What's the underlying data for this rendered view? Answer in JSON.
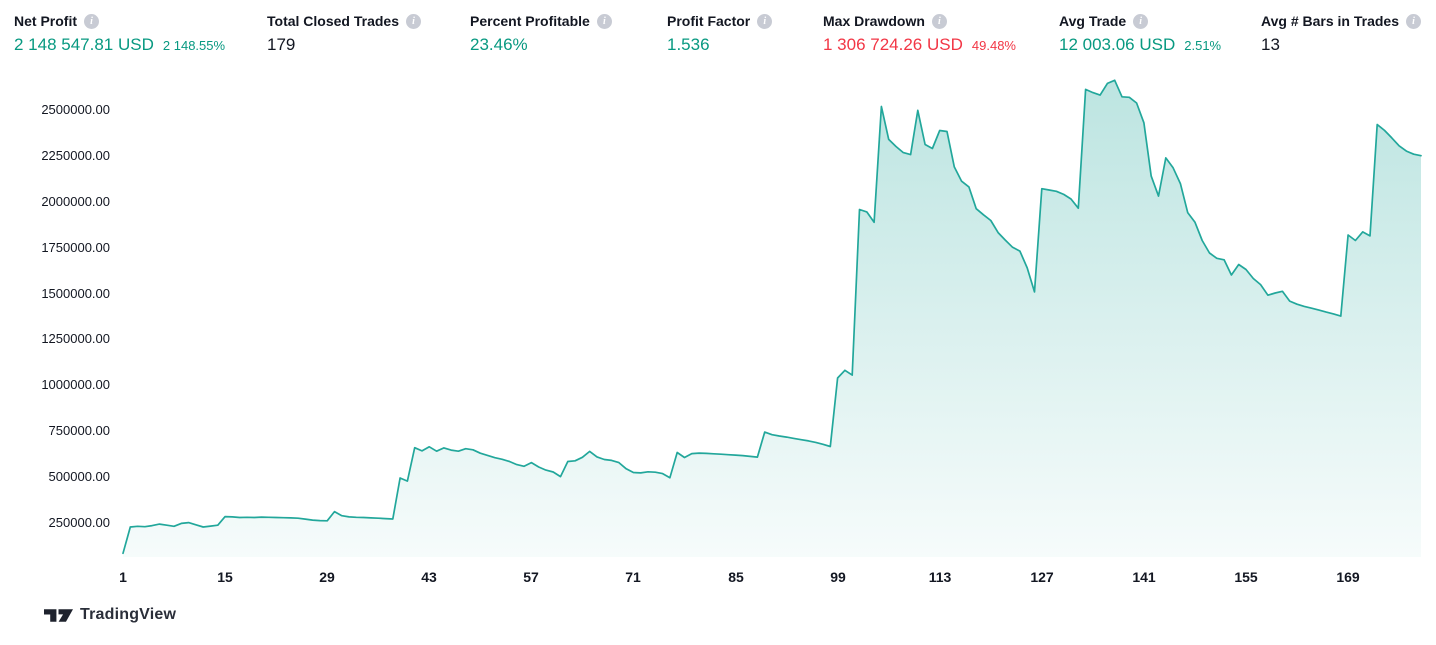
{
  "icons": {
    "info_glyph": "i"
  },
  "stats": [
    {
      "label": "Net Profit",
      "value": "2 148 547.81 USD",
      "sub": "2 148.55%",
      "tone": "positive"
    },
    {
      "label": "Total Closed Trades",
      "value": "179",
      "sub": "",
      "tone": "neutral"
    },
    {
      "label": "Percent Profitable",
      "value": "23.46%",
      "sub": "",
      "tone": "positive"
    },
    {
      "label": "Profit Factor",
      "value": "1.536",
      "sub": "",
      "tone": "positive"
    },
    {
      "label": "Max Drawdown",
      "value": "1 306 724.26 USD",
      "sub": "49.48%",
      "tone": "negative"
    },
    {
      "label": "Avg Trade",
      "value": "12 003.06 USD",
      "sub": "2.51%",
      "tone": "positive"
    },
    {
      "label": "Avg # Bars in Trades",
      "value": "13",
      "sub": "",
      "tone": "neutral"
    }
  ],
  "chart_data": {
    "type": "area",
    "title": "",
    "xlabel": "",
    "ylabel": "",
    "x_label_meaning": "trade number",
    "x_ticks": [
      1,
      15,
      29,
      43,
      57,
      71,
      85,
      99,
      113,
      127,
      141,
      155,
      169
    ],
    "y_ticks": [
      "250000.00",
      "500000.00",
      "750000.00",
      "1000000.00",
      "1250000.00",
      "1500000.00",
      "1750000.00",
      "2000000.00",
      "2250000.00",
      "2500000.00"
    ],
    "y_tick_values": [
      250000,
      500000,
      750000,
      1000000,
      1250000,
      1500000,
      1750000,
      2000000,
      2250000,
      2500000
    ],
    "x_start": 1,
    "values": [
      85000,
      228000,
      232000,
      230000,
      236000,
      244000,
      238000,
      232000,
      248000,
      252000,
      240000,
      228000,
      233000,
      238000,
      285000,
      283000,
      280000,
      281000,
      280000,
      282000,
      281000,
      280000,
      279000,
      278000,
      276000,
      271000,
      266000,
      263000,
      262000,
      312000,
      290000,
      283000,
      281000,
      280000,
      278000,
      276000,
      274000,
      272000,
      495000,
      478000,
      660000,
      643000,
      665000,
      641000,
      659000,
      647000,
      641000,
      655000,
      649000,
      630000,
      618000,
      606000,
      597000,
      585000,
      568000,
      559000,
      579000,
      555000,
      538000,
      528000,
      503000,
      585000,
      589000,
      608000,
      640000,
      610000,
      596000,
      591000,
      579000,
      545000,
      525000,
      523000,
      529000,
      527000,
      519000,
      497000,
      634000,
      607000,
      628000,
      631000,
      629000,
      627000,
      625000,
      622000,
      620000,
      617000,
      613000,
      609000,
      745000,
      731000,
      724000,
      718000,
      711000,
      704000,
      697000,
      689000,
      679000,
      667000,
      1040000,
      1082000,
      1056000,
      1958000,
      1945000,
      1888000,
      2519000,
      2340000,
      2301000,
      2268000,
      2257000,
      2498000,
      2312000,
      2290000,
      2388000,
      2383000,
      2190000,
      2112000,
      2081000,
      1962000,
      1929000,
      1898000,
      1832000,
      1791000,
      1752000,
      1731000,
      1640000,
      1509000,
      2071000,
      2064000,
      2057000,
      2040000,
      2015000,
      1965000,
      2612000,
      2595000,
      2581000,
      2645000,
      2662000,
      2572000,
      2569000,
      2538000,
      2430000,
      2140000,
      2031000,
      2239000,
      2185000,
      2099000,
      1941000,
      1889000,
      1789000,
      1721000,
      1692000,
      1684000,
      1601000,
      1658000,
      1631000,
      1582000,
      1549000,
      1491000,
      1503000,
      1512000,
      1459000,
      1442000,
      1430000,
      1420000,
      1410000,
      1399000,
      1389000,
      1377000,
      1819000,
      1789000,
      1836000,
      1814000,
      2421000,
      2389000,
      2348000,
      2305000,
      2276000,
      2259000,
      2251000
    ],
    "line_color": "#22a79b",
    "fill_top": "rgba(34,167,155,0.30)",
    "fill_bottom": "rgba(34,167,155,0.04)",
    "grid": "off",
    "legend": "none"
  },
  "footer": {
    "brand": "TradingView"
  }
}
